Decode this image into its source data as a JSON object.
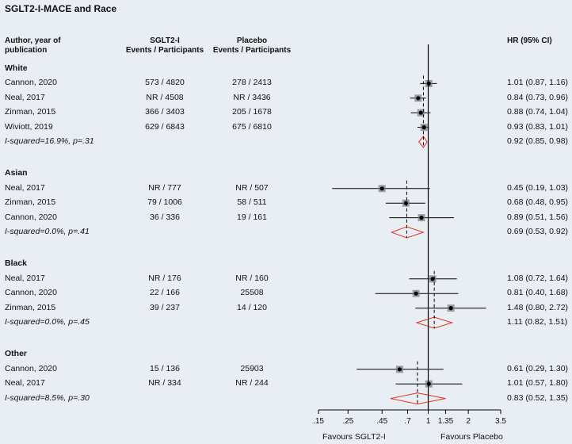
{
  "chart_data": {
    "type": "forest",
    "title": "SGLT2-I-MACE  and Race",
    "headers": {
      "author": [
        "Author, year of",
        "publication"
      ],
      "sglt2": [
        "SGLT2-I",
        "Events / Participants"
      ],
      "placebo": [
        "Placebo",
        "Events / Participants"
      ],
      "hr": "HR (95% CI)"
    },
    "groups": [
      {
        "name": "White",
        "studies": [
          {
            "author": "Cannon, 2020",
            "sglt2": "573 / 4820",
            "placebo": "278 / 2413",
            "hr_text": "1.01 (0.87, 1.16)",
            "hr": 1.01,
            "lo": 0.87,
            "hi": 1.16
          },
          {
            "author": "Neal, 2017",
            "sglt2": "NR / 4508",
            "placebo": "NR / 3436",
            "hr_text": "0.84 (0.73, 0.96)",
            "hr": 0.84,
            "lo": 0.73,
            "hi": 0.96
          },
          {
            "author": "Zinman, 2015",
            "sglt2": "366 / 3403",
            "placebo": "205 / 1678",
            "hr_text": "0.88 (0.74, 1.04)",
            "hr": 0.88,
            "lo": 0.74,
            "hi": 1.04
          },
          {
            "author": "Wiviott, 2019",
            "sglt2": "629 / 6843",
            "placebo": "675 / 6810",
            "hr_text": "0.93 (0.83, 1.01)",
            "hr": 0.93,
            "lo": 0.83,
            "hi": 1.01
          }
        ],
        "pooled": {
          "label": "I-squared=16.9%, p=.31",
          "hr_text": "0.92 (0.85, 0.98)",
          "hr": 0.92,
          "lo": 0.85,
          "hi": 0.98
        }
      },
      {
        "name": "Asian",
        "studies": [
          {
            "author": "Neal, 2017",
            "sglt2": "NR / 777",
            "placebo": "NR / 507",
            "hr_text": "0.45 (0.19, 1.03)",
            "hr": 0.45,
            "lo": 0.19,
            "hi": 1.03
          },
          {
            "author": "Zinman, 2015",
            "sglt2": "79 / 1006",
            "placebo": "58 / 511",
            "hr_text": "0.68 (0.48, 0.95)",
            "hr": 0.68,
            "lo": 0.48,
            "hi": 0.95
          },
          {
            "author": "Cannon, 2020",
            "sglt2": "36 / 336",
            "placebo": "19 / 161",
            "hr_text": "0.89 (0.51, 1.56)",
            "hr": 0.89,
            "lo": 0.51,
            "hi": 1.56
          }
        ],
        "pooled": {
          "label": "I-squared=0.0%, p=.41",
          "hr_text": "0.69 (0.53, 0.92)",
          "hr": 0.69,
          "lo": 0.53,
          "hi": 0.92
        }
      },
      {
        "name": "Black",
        "studies": [
          {
            "author": "Neal, 2017",
            "sglt2": "NR / 176",
            "placebo": "NR / 160",
            "hr_text": "1.08 (0.72, 1.64)",
            "hr": 1.08,
            "lo": 0.72,
            "hi": 1.64
          },
          {
            "author": "Cannon, 2020",
            "sglt2": "22 / 166",
            "placebo": "25508",
            "hr_text": "0.81 (0.40, 1.68)",
            "hr": 0.81,
            "lo": 0.4,
            "hi": 1.68
          },
          {
            "author": "Zinman, 2015",
            "sglt2": "39 / 237",
            "placebo": "14 / 120",
            "hr_text": "1.48 (0.80, 2.72)",
            "hr": 1.48,
            "lo": 0.8,
            "hi": 2.72
          }
        ],
        "pooled": {
          "label": "I-squared=0.0%, p=.45",
          "hr_text": "1.11 (0.82, 1.51)",
          "hr": 1.11,
          "lo": 0.82,
          "hi": 1.51
        }
      },
      {
        "name": "Other",
        "studies": [
          {
            "author": "Cannon, 2020",
            "sglt2": "15 / 136",
            "placebo": "25903",
            "hr_text": "0.61 (0.29, 1.30)",
            "hr": 0.61,
            "lo": 0.29,
            "hi": 1.3
          },
          {
            "author": "Neal, 2017",
            "sglt2": "NR / 334",
            "placebo": "NR / 244",
            "hr_text": "1.01 (0.57, 1.80)",
            "hr": 1.01,
            "lo": 0.57,
            "hi": 1.8
          }
        ],
        "pooled": {
          "label": "I-squared=8.5%, p=.30",
          "hr_text": "0.83 (0.52, 1.35)",
          "hr": 0.83,
          "lo": 0.52,
          "hi": 1.35
        }
      }
    ],
    "x_scale": "log",
    "xlim": [
      0.15,
      3.5
    ],
    "x_ticks": [
      0.15,
      0.25,
      0.45,
      0.7,
      1,
      1.35,
      2,
      3.5
    ],
    "x_tick_labels": [
      ".15",
      ".25",
      ".45",
      ".7",
      "1",
      "1.35",
      "2",
      "3.5"
    ],
    "favours_left": "Favours SGLT2-I",
    "favours_right": "Favours Placebo",
    "colors": {
      "line": "#000000",
      "diamond": "#e0341c",
      "marker": "#808080"
    }
  }
}
